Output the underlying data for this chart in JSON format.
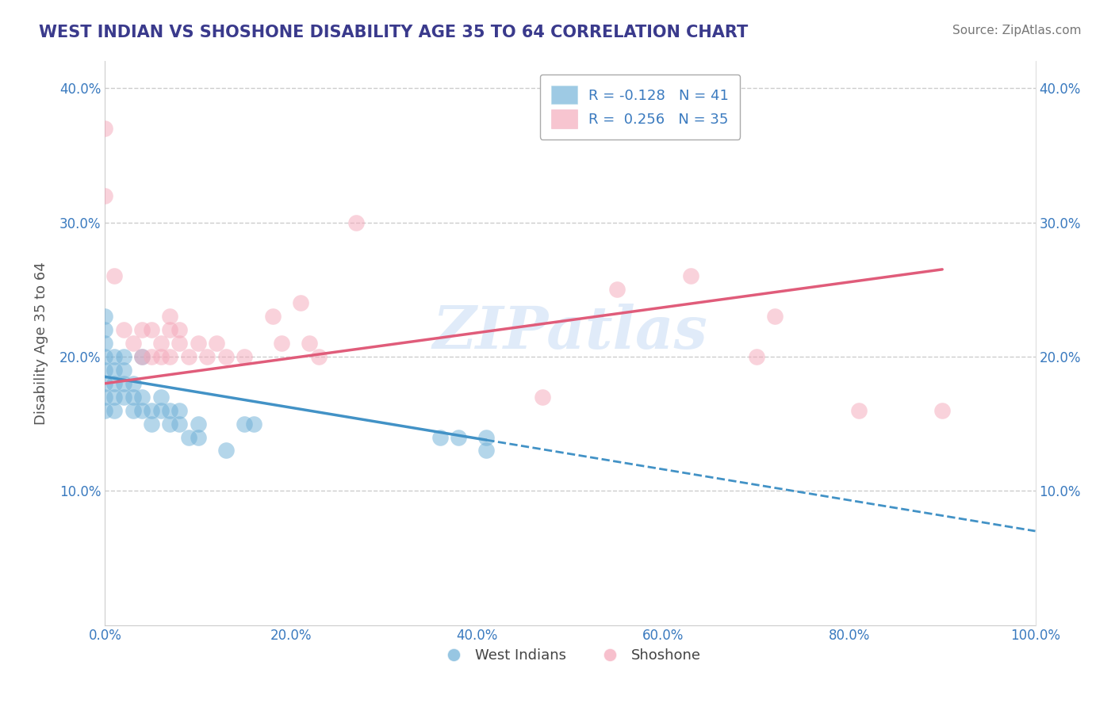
{
  "title": "WEST INDIAN VS SHOSHONE DISABILITY AGE 35 TO 64 CORRELATION CHART",
  "source": "Source: ZipAtlas.com",
  "ylabel": "Disability Age 35 to 64",
  "xlim": [
    0,
    1.0
  ],
  "ylim": [
    0,
    0.42
  ],
  "x_ticks": [
    0.0,
    0.2,
    0.4,
    0.6,
    0.8,
    1.0
  ],
  "x_tick_labels": [
    "0.0%",
    "20.0%",
    "40.0%",
    "60.0%",
    "80.0%",
    "100.0%"
  ],
  "y_ticks": [
    0.0,
    0.1,
    0.2,
    0.3,
    0.4
  ],
  "y_tick_labels": [
    "",
    "10.0%",
    "20.0%",
    "30.0%",
    "40.0%"
  ],
  "color_blue": "#6baed6",
  "color_pink": "#f4a6b8",
  "line_blue": "#4292c6",
  "line_pink": "#e05c7a",
  "watermark": "ZIPatlas",
  "title_color": "#3a3a8c",
  "source_color": "#777777",
  "west_indians_x": [
    0.0,
    0.0,
    0.0,
    0.0,
    0.0,
    0.0,
    0.0,
    0.0,
    0.01,
    0.01,
    0.01,
    0.01,
    0.01,
    0.02,
    0.02,
    0.02,
    0.02,
    0.03,
    0.03,
    0.03,
    0.04,
    0.04,
    0.04,
    0.05,
    0.05,
    0.06,
    0.06,
    0.07,
    0.07,
    0.08,
    0.08,
    0.09,
    0.1,
    0.1,
    0.13,
    0.15,
    0.16,
    0.36,
    0.38,
    0.41,
    0.41
  ],
  "west_indians_y": [
    0.18,
    0.19,
    0.2,
    0.21,
    0.16,
    0.17,
    0.22,
    0.23,
    0.18,
    0.19,
    0.2,
    0.17,
    0.16,
    0.17,
    0.18,
    0.19,
    0.2,
    0.16,
    0.17,
    0.18,
    0.16,
    0.17,
    0.2,
    0.15,
    0.16,
    0.16,
    0.17,
    0.15,
    0.16,
    0.15,
    0.16,
    0.14,
    0.14,
    0.15,
    0.13,
    0.15,
    0.15,
    0.14,
    0.14,
    0.14,
    0.13
  ],
  "shoshone_x": [
    0.0,
    0.0,
    0.01,
    0.02,
    0.03,
    0.04,
    0.04,
    0.05,
    0.05,
    0.06,
    0.06,
    0.07,
    0.07,
    0.07,
    0.08,
    0.08,
    0.09,
    0.1,
    0.11,
    0.12,
    0.13,
    0.15,
    0.18,
    0.19,
    0.21,
    0.22,
    0.23,
    0.27,
    0.47,
    0.55,
    0.63,
    0.7,
    0.72,
    0.81,
    0.9
  ],
  "shoshone_y": [
    0.37,
    0.32,
    0.26,
    0.22,
    0.21,
    0.2,
    0.22,
    0.2,
    0.22,
    0.2,
    0.21,
    0.2,
    0.22,
    0.23,
    0.21,
    0.22,
    0.2,
    0.21,
    0.2,
    0.21,
    0.2,
    0.2,
    0.23,
    0.21,
    0.24,
    0.21,
    0.2,
    0.3,
    0.17,
    0.25,
    0.26,
    0.2,
    0.23,
    0.16,
    0.16
  ],
  "blue_line_start_x": 0.0,
  "blue_line_solid_end_x": 0.41,
  "blue_line_end_x": 1.0,
  "blue_line_start_y": 0.185,
  "blue_line_end_y": 0.07,
  "pink_line_start_x": 0.0,
  "pink_line_end_x": 0.9,
  "pink_line_start_y": 0.18,
  "pink_line_end_y": 0.265
}
